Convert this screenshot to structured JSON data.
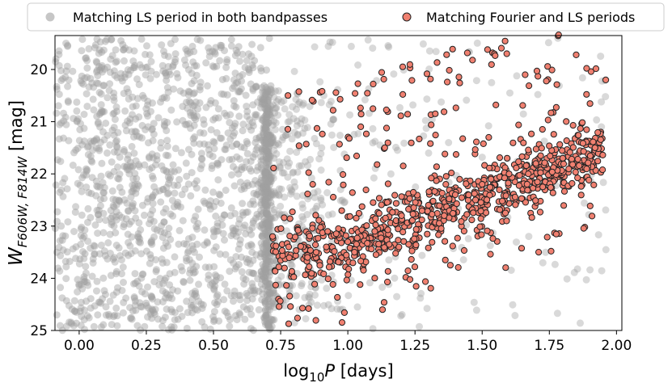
{
  "chart_data": {
    "type": "scatter",
    "xlabel_base": "log",
    "xlabel_sub": "10",
    "xlabel_var": "P",
    "xlabel_unit": " [days]",
    "ylabel_main": "W",
    "ylabel_sub": "F606W, F814W",
    "ylabel_unit": " [mag]",
    "xlim": [
      -0.09,
      2.02
    ],
    "ylim": [
      25.0,
      19.35
    ],
    "y_inverted": true,
    "x_ticks": [
      "0.00",
      "0.25",
      "0.50",
      "0.75",
      "1.00",
      "1.25",
      "1.50",
      "1.75",
      "2.00"
    ],
    "y_ticks": [
      "20",
      "21",
      "22",
      "23",
      "24",
      "25"
    ],
    "legend_position": "top",
    "grid": false,
    "series": [
      {
        "name": "Matching LS period in both bandpasses",
        "color": "#a0a0a0",
        "marker": "circle, semi-transparent, no edge",
        "distribution": "dense vertical band near logP=0.70; broad uniform scatter 0.0-0.70 across mag 19.4-25; sparse scatter above 0.75"
      },
      {
        "name": "Matching Fourier and LS periods",
        "color": "#f08070",
        "edge": "#222222",
        "marker": "circle with dark edge",
        "distribution": "period-luminosity sequence from about (0.75, 23.5) to (1.95, 21.6) with scatter"
      }
    ],
    "sample_points_matching_fourier_ls": [
      [
        0.72,
        23.2
      ],
      [
        0.78,
        23.4
      ],
      [
        0.85,
        23.6
      ],
      [
        0.92,
        23.4
      ],
      [
        1.0,
        23.3
      ],
      [
        1.1,
        23.1
      ],
      [
        1.2,
        22.8
      ],
      [
        1.3,
        22.6
      ],
      [
        1.4,
        22.4
      ],
      [
        1.5,
        22.2
      ],
      [
        1.6,
        22.0
      ],
      [
        1.7,
        21.8
      ],
      [
        1.8,
        21.7
      ],
      [
        1.92,
        21.5
      ],
      [
        1.52,
        19.62
      ],
      [
        1.85,
        19.72
      ],
      [
        1.66,
        20.1
      ],
      [
        1.96,
        20.2
      ]
    ]
  }
}
